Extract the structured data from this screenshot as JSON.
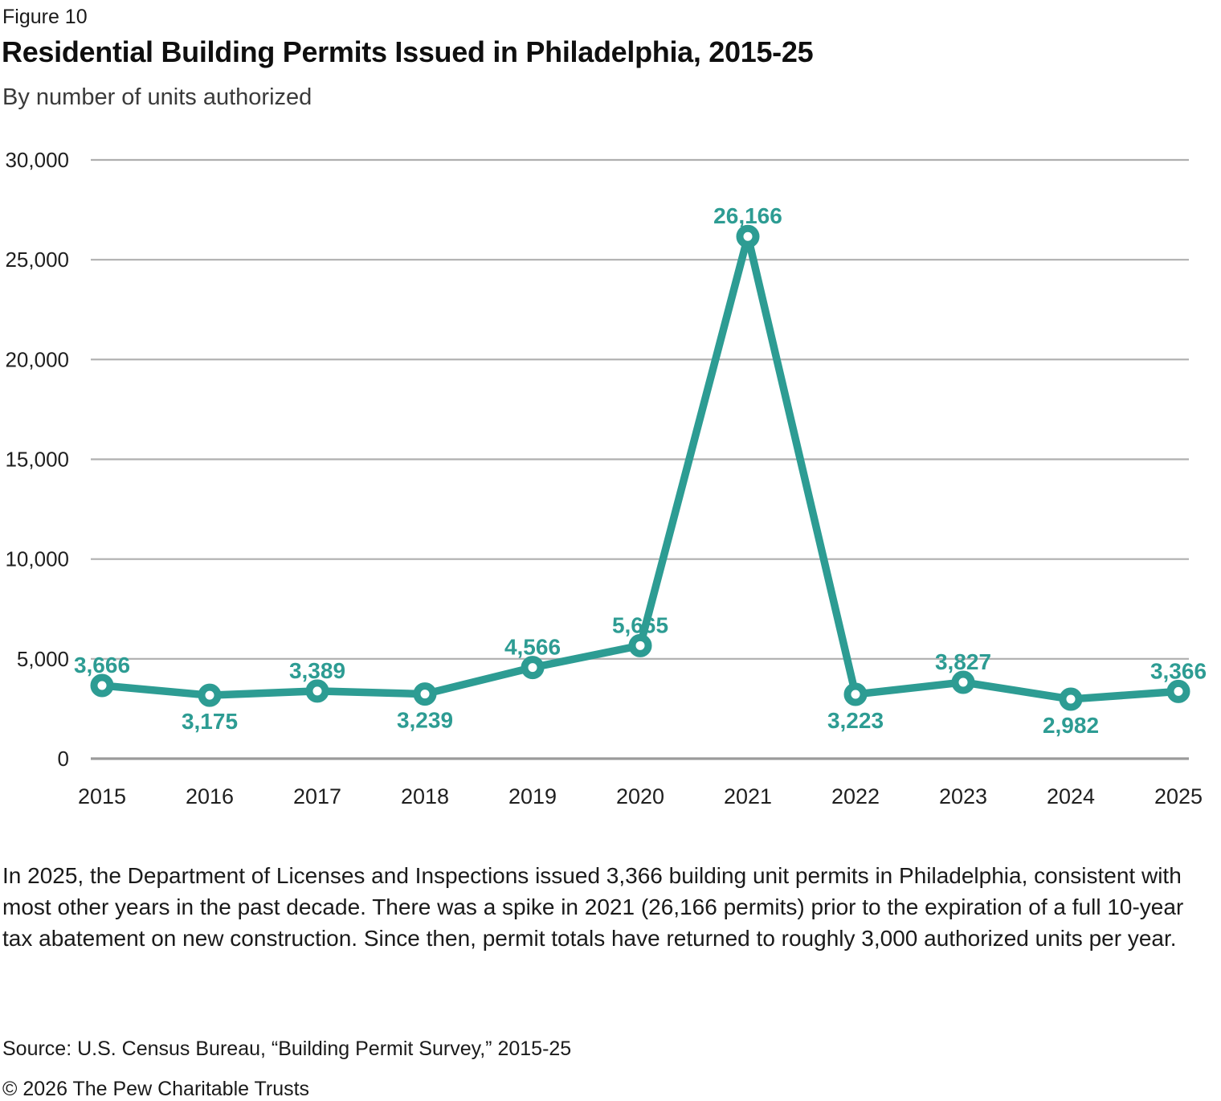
{
  "header": {
    "figure_label": "Figure 10",
    "title": "Residential Building Permits Issued in Philadelphia, 2015-25",
    "subtitle": "By number of units authorized"
  },
  "chart_data": {
    "type": "line",
    "title": "Residential Building Permits Issued in Philadelphia, 2015-25",
    "subtitle": "By number of units authorized",
    "x": [
      "2015",
      "2016",
      "2017",
      "2018",
      "2019",
      "2020",
      "2021",
      "2022",
      "2023",
      "2024",
      "2025"
    ],
    "values": [
      3666,
      3175,
      3389,
      3239,
      4566,
      5665,
      26166,
      3223,
      3827,
      2982,
      3366
    ],
    "point_labels": [
      "3,666",
      "3,175",
      "3,389",
      "3,239",
      "4,566",
      "5,665",
      "26,166",
      "3,223",
      "3,827",
      "2,982",
      "3,366"
    ],
    "label_side": [
      "above",
      "below",
      "above",
      "below",
      "above",
      "above",
      "above",
      "below",
      "above",
      "below",
      "above"
    ],
    "ylim": [
      0,
      30000
    ],
    "ytick_step": 5000,
    "ytick_labels": [
      "0",
      "5,000",
      "10,000",
      "15,000",
      "20,000",
      "25,000",
      "30,000"
    ],
    "grid": "horizontal",
    "legend": "none",
    "marker": "open-circle",
    "xlabel": "",
    "ylabel": ""
  },
  "colors": {
    "accent_teal": "#2D9C93",
    "gridline": "#AFAFAF",
    "zero_line": "#9B9B9B",
    "axis_text": "#1f1f1f"
  },
  "footer": {
    "caption": "In 2025, the Department of Licenses and Inspections issued 3,366 building unit permits in Philadelphia, consistent with most other years in the past decade. There was a spike in 2021 (26,166 permits) prior to the expiration of a full 10-year tax abatement on new construction. Since then, permit totals have returned to roughly 3,000 authorized units per year.",
    "source": "Source: U.S. Census Bureau, “Building Permit Survey,” 2015-25",
    "copyright": "© 2026 The Pew Charitable Trusts"
  }
}
